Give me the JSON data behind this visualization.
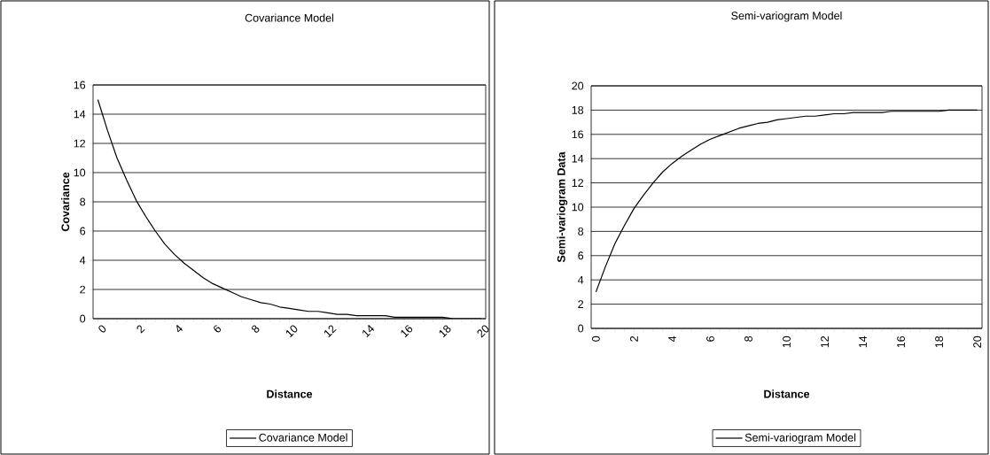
{
  "chart_data": [
    {
      "type": "line",
      "title": "Covariance Model",
      "xlabel": "Distance",
      "ylabel": "Covariance",
      "x": [
        0,
        0.5,
        1,
        1.5,
        2,
        2.5,
        3,
        3.5,
        4,
        4.5,
        5,
        5.5,
        6,
        6.5,
        7,
        7.5,
        8,
        8.5,
        9,
        9.5,
        10,
        10.5,
        11,
        11.5,
        12,
        12.5,
        13,
        13.5,
        14,
        14.5,
        15,
        15.5,
        16,
        16.5,
        17,
        17.5,
        18,
        18.5,
        19,
        19.5,
        20
      ],
      "series": [
        {
          "name": "Covariance Model",
          "color": "#000000",
          "values": [
            15.0,
            12.9,
            11.0,
            9.5,
            8.1,
            7.0,
            6.0,
            5.1,
            4.4,
            3.8,
            3.3,
            2.8,
            2.4,
            2.1,
            1.8,
            1.5,
            1.3,
            1.1,
            1.0,
            0.8,
            0.7,
            0.6,
            0.5,
            0.5,
            0.4,
            0.3,
            0.3,
            0.2,
            0.2,
            0.2,
            0.2,
            0.1,
            0.1,
            0.1,
            0.1,
            0.1,
            0.1,
            0.0,
            0.0,
            0.0,
            0.0
          ]
        }
      ],
      "xlim": [
        -0.25,
        20.25
      ],
      "xticks": [
        0,
        2,
        4,
        6,
        8,
        10,
        12,
        14,
        16,
        18,
        20
      ],
      "ylim": [
        0,
        16
      ],
      "yticks": [
        0,
        2,
        4,
        6,
        8,
        10,
        12,
        14,
        16
      ],
      "grid": "y",
      "legend": "bottom"
    },
    {
      "type": "line",
      "title": "Semi-variogram Model",
      "xlabel": "Distance",
      "ylabel": "Semi-variogram Data",
      "x": [
        0,
        0.5,
        1,
        1.5,
        2,
        2.5,
        3,
        3.5,
        4,
        4.5,
        5,
        5.5,
        6,
        6.5,
        7,
        7.5,
        8,
        8.5,
        9,
        9.5,
        10,
        10.5,
        11,
        11.5,
        12,
        12.5,
        13,
        13.5,
        14,
        14.5,
        15,
        15.5,
        16,
        16.5,
        17,
        17.5,
        18,
        18.5,
        19,
        19.5,
        20
      ],
      "series": [
        {
          "name": "Semi-variogram Model",
          "color": "#000000",
          "values": [
            3.0,
            5.1,
            7.0,
            8.5,
            9.9,
            11.0,
            12.0,
            12.9,
            13.6,
            14.2,
            14.7,
            15.2,
            15.6,
            15.9,
            16.2,
            16.5,
            16.7,
            16.9,
            17.0,
            17.2,
            17.3,
            17.4,
            17.5,
            17.5,
            17.6,
            17.7,
            17.7,
            17.8,
            17.8,
            17.8,
            17.8,
            17.9,
            17.9,
            17.9,
            17.9,
            17.9,
            17.9,
            18.0,
            18.0,
            18.0,
            18.0
          ]
        }
      ],
      "xlim": [
        -0.25,
        20.25
      ],
      "xticks": [
        0,
        2,
        4,
        6,
        8,
        10,
        12,
        14,
        16,
        18,
        20
      ],
      "ylim": [
        0,
        20
      ],
      "yticks": [
        0,
        2,
        4,
        6,
        8,
        10,
        12,
        14,
        16,
        18,
        20
      ],
      "grid": "y",
      "legend": "bottom"
    }
  ]
}
